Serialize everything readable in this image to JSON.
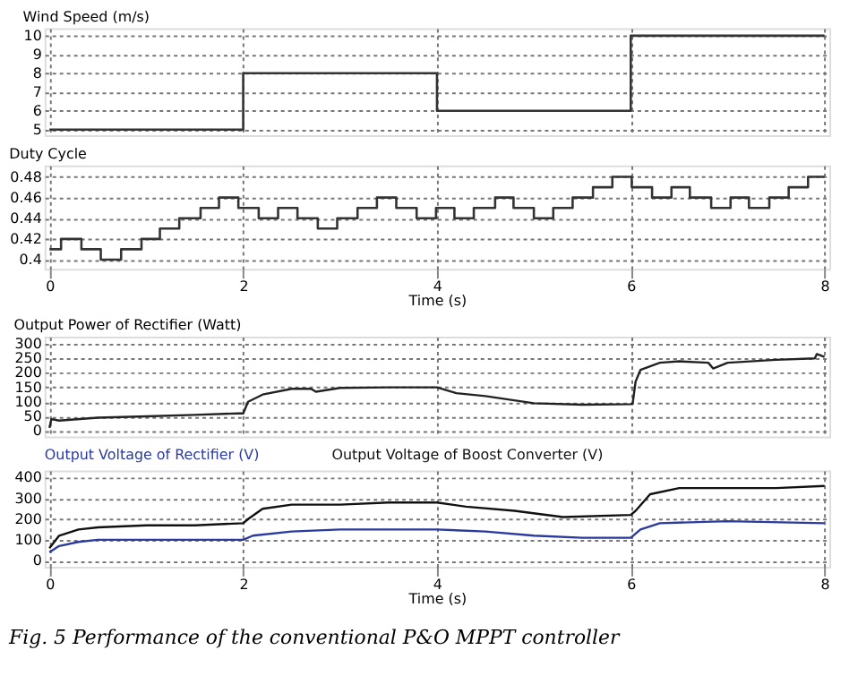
{
  "chart_data": [
    {
      "type": "step",
      "title": "Wind Speed (m/s)",
      "x": [
        0,
        2,
        4,
        6,
        8
      ],
      "xlim": [
        -0.05,
        8.05
      ],
      "xticks": [
        0,
        2,
        4,
        6,
        8
      ],
      "ylim": [
        4.7,
        10.4
      ],
      "yticks": [
        5,
        6,
        7,
        8,
        9,
        10
      ],
      "grid": true,
      "tick_labels": "y",
      "series": [
        {
          "color": "#333333",
          "values": [
            5,
            8,
            6,
            10,
            10
          ]
        }
      ]
    },
    {
      "type": "step",
      "title": "Duty Cycle",
      "xlabel": "Time (s)",
      "xlim": [
        -0.05,
        8.05
      ],
      "xticks": [
        0,
        2,
        4,
        6,
        8
      ],
      "ylim": [
        0.391,
        0.491
      ],
      "yticks": [
        {
          "value": 0.4,
          "label": "0.4"
        },
        0.42,
        0.44,
        0.46,
        0.48
      ],
      "grid": true,
      "x": [
        0,
        0.12,
        0.33,
        0.53,
        0.74,
        0.95,
        1.14,
        1.34,
        1.56,
        1.75,
        1.95,
        2.16,
        2.36,
        2.56,
        2.77,
        2.97,
        3.18,
        3.38,
        3.58,
        3.79,
        3.99,
        4.18,
        4.38,
        4.6,
        4.79,
        5.0,
        5.2,
        5.4,
        5.61,
        5.81,
        6.01,
        6.22,
        6.42,
        6.61,
        6.83,
        7.03,
        7.22,
        7.43,
        7.63,
        7.83,
        8
      ],
      "series": [
        {
          "color": "#333333",
          "values": [
            0.41,
            0.42,
            0.41,
            0.4,
            0.41,
            0.42,
            0.43,
            0.44,
            0.45,
            0.46,
            0.45,
            0.44,
            0.45,
            0.44,
            0.43,
            0.44,
            0.45,
            0.46,
            0.45,
            0.44,
            0.45,
            0.44,
            0.45,
            0.46,
            0.45,
            0.44,
            0.45,
            0.46,
            0.47,
            0.48,
            0.47,
            0.46,
            0.47,
            0.46,
            0.45,
            0.46,
            0.45,
            0.46,
            0.47,
            0.48,
            0.48
          ]
        }
      ]
    },
    {
      "type": "line",
      "title": "Output Power of Rectifier (Watt)",
      "xlim": [
        -0.05,
        8.05
      ],
      "xticks": [
        0,
        2,
        4,
        6,
        8
      ],
      "ylim": [
        -20,
        325
      ],
      "yticks": [
        0,
        50,
        100,
        150,
        200,
        250,
        300
      ],
      "grid": true,
      "tick_labels": "y",
      "x": [
        0,
        0.02,
        0.1,
        0.5,
        1,
        1.5,
        1.95,
        2,
        2.05,
        2.2,
        2.5,
        2.7,
        2.75,
        3,
        3.5,
        4,
        4.2,
        4.5,
        5,
        5.5,
        6,
        6.02,
        6.05,
        6.1,
        6.3,
        6.5,
        6.8,
        6.85,
        7,
        7.5,
        7.9,
        7.92,
        8
      ],
      "series": [
        {
          "color": "#222222",
          "values": [
            10,
            40,
            35,
            45,
            50,
            55,
            60,
            60,
            100,
            125,
            145,
            145,
            135,
            148,
            150,
            150,
            130,
            120,
            95,
            90,
            92,
            95,
            170,
            210,
            235,
            240,
            235,
            215,
            235,
            245,
            250,
            265,
            255
          ]
        }
      ]
    },
    {
      "type": "line",
      "xlabel": "Time (s)",
      "xlim": [
        -0.05,
        8.05
      ],
      "xticks": [
        0,
        2,
        4,
        6,
        8
      ],
      "ylim": [
        -30,
        435
      ],
      "yticks": [
        0,
        100,
        200,
        300,
        400
      ],
      "grid": true,
      "legend": "top left",
      "annotations": [
        "Fig. 5  Performance of the conventional P&O MPPT controller"
      ],
      "series": [
        {
          "name": "Output Voltage of Rectifier (V)",
          "color": "#2b3a9e",
          "x": [
            0,
            0.1,
            0.3,
            0.5,
            1,
            1.5,
            2,
            2.1,
            2.5,
            3,
            4,
            4.5,
            5,
            5.5,
            6,
            6.1,
            6.3,
            7,
            8
          ],
          "values": [
            40,
            70,
            90,
            100,
            100,
            100,
            100,
            120,
            140,
            150,
            150,
            140,
            120,
            110,
            110,
            150,
            180,
            190,
            180
          ]
        },
        {
          "name": "Output Voltage of Boost Converter (V)",
          "color": "#111111",
          "x": [
            0,
            0.1,
            0.3,
            0.5,
            1,
            1.5,
            2,
            2.05,
            2.2,
            2.5,
            3,
            3.5,
            4,
            4.3,
            4.8,
            5.3,
            6,
            6.05,
            6.2,
            6.5,
            7,
            7.5,
            8
          ],
          "values": [
            60,
            120,
            150,
            160,
            170,
            170,
            180,
            200,
            250,
            270,
            270,
            280,
            280,
            260,
            240,
            210,
            220,
            240,
            320,
            350,
            350,
            350,
            360
          ]
        }
      ]
    }
  ]
}
